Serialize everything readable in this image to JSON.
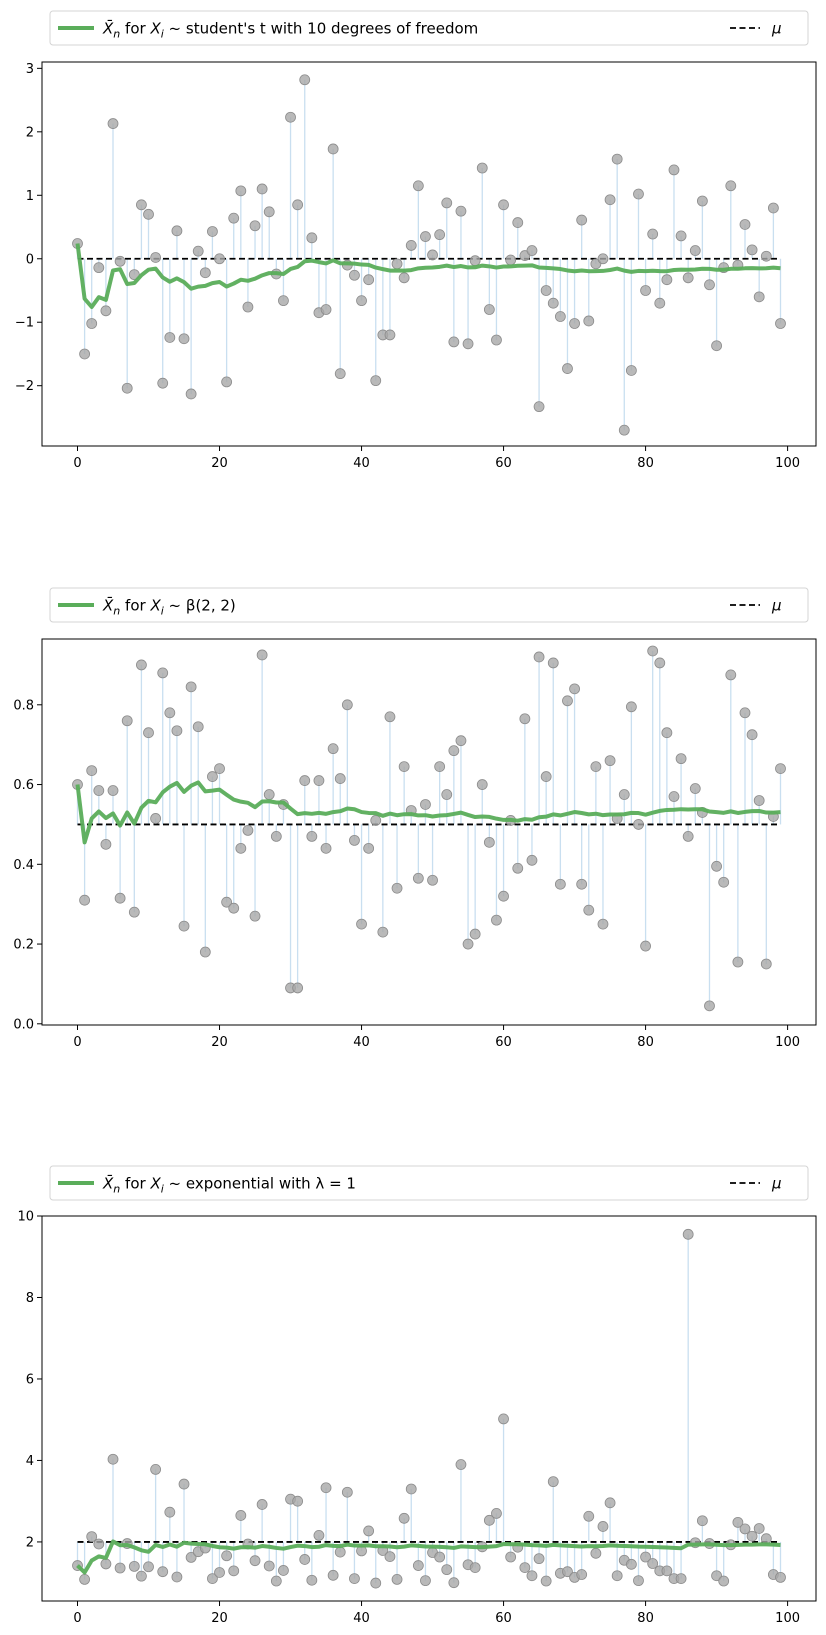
{
  "chart_data": [
    {
      "type": "line",
      "legend": {
        "sample_mean": {
          "prefix": "X̄",
          "sub": "n",
          "mid": " for ",
          "var": "X",
          "varsub": "i",
          "dist": " ~ student's t with 10 degrees of freedom"
        },
        "mu": "μ"
      },
      "mu": 0,
      "ylim": [
        -2.95,
        3.1
      ],
      "yticks": [
        -2,
        -1,
        0,
        1,
        2,
        3
      ],
      "ytick_labels": [
        "−2",
        "−1",
        "0",
        "1",
        "2",
        "3"
      ],
      "xlim": [
        -5,
        104
      ],
      "xticks": [
        0,
        20,
        40,
        60,
        80,
        100
      ],
      "xtick_labels": [
        "0",
        "20",
        "40",
        "60",
        "80",
        "100"
      ],
      "samples": [
        0.24,
        -1.5,
        -1.02,
        -0.14,
        -0.82,
        2.13,
        -0.04,
        -2.04,
        -0.25,
        0.85,
        0.7,
        0.02,
        -1.96,
        -1.24,
        0.44,
        -1.26,
        -2.13,
        0.12,
        -0.22,
        0.43,
        0.0,
        -1.94,
        0.64,
        1.07,
        -0.76,
        0.52,
        1.1,
        0.74,
        -0.24,
        -0.66,
        2.23,
        0.85,
        2.82,
        0.33,
        -0.85,
        -0.8,
        1.73,
        -1.81,
        -0.1,
        -0.26,
        -0.66,
        -0.33,
        -1.92,
        -1.2,
        -1.2,
        -0.08,
        -0.3,
        0.21,
        1.15,
        0.35,
        0.06,
        0.38,
        0.88,
        -1.31,
        0.75,
        -1.34,
        -0.03,
        1.43,
        -0.8,
        -1.28,
        0.85,
        -0.02,
        0.57,
        0.05,
        0.13,
        -2.33,
        -0.5,
        -0.7,
        -0.91,
        -1.73,
        -1.02,
        0.61,
        -0.98,
        -0.08,
        0.0,
        0.93,
        1.57,
        -2.7,
        -1.76,
        1.02,
        -0.5,
        0.39,
        -0.7,
        -0.33,
        1.4,
        0.36,
        -0.3,
        0.13,
        0.91,
        -0.41,
        -1.37,
        -0.14,
        1.15,
        -0.1,
        0.54,
        0.14,
        -0.6,
        0.04,
        0.8,
        -1.02
      ],
      "mean_curve": true
    },
    {
      "type": "line",
      "legend": {
        "sample_mean": {
          "prefix": "X̄",
          "sub": "n",
          "mid": " for ",
          "var": "X",
          "varsub": "i",
          "dist": " ~ β(2, 2)"
        },
        "mu": "μ"
      },
      "mu": 0.5,
      "ylim": [
        -0.003,
        0.965
      ],
      "yticks": [
        0.0,
        0.2,
        0.4,
        0.6,
        0.8
      ],
      "ytick_labels": [
        "0.0",
        "0.2",
        "0.4",
        "0.6",
        "0.8"
      ],
      "xlim": [
        -5,
        104
      ],
      "xticks": [
        0,
        20,
        40,
        60,
        80,
        100
      ],
      "xtick_labels": [
        "0",
        "20",
        "40",
        "60",
        "80",
        "100"
      ],
      "samples": [
        0.6,
        0.31,
        0.635,
        0.585,
        0.45,
        0.585,
        0.315,
        0.76,
        0.28,
        0.9,
        0.73,
        0.515,
        0.88,
        0.78,
        0.735,
        0.245,
        0.845,
        0.745,
        0.18,
        0.62,
        0.64,
        0.305,
        0.29,
        0.44,
        0.485,
        0.27,
        0.925,
        0.575,
        0.47,
        0.55,
        0.09,
        0.09,
        0.61,
        0.47,
        0.61,
        0.44,
        0.69,
        0.615,
        0.8,
        0.46,
        0.25,
        0.44,
        0.51,
        0.23,
        0.77,
        0.34,
        0.645,
        0.535,
        0.365,
        0.55,
        0.36,
        0.645,
        0.575,
        0.685,
        0.71,
        0.2,
        0.225,
        0.6,
        0.455,
        0.26,
        0.32,
        0.51,
        0.39,
        0.765,
        0.41,
        0.92,
        0.62,
        0.905,
        0.35,
        0.81,
        0.84,
        0.35,
        0.285,
        0.645,
        0.25,
        0.66,
        0.515,
        0.575,
        0.795,
        0.5,
        0.195,
        0.935,
        0.905,
        0.73,
        0.57,
        0.665,
        0.47,
        0.59,
        0.53,
        0.045,
        0.395,
        0.355,
        0.875,
        0.155,
        0.78,
        0.725,
        0.56,
        0.15,
        0.52,
        0.64
      ],
      "mean_curve": true
    },
    {
      "type": "line",
      "legend": {
        "sample_mean": {
          "prefix": "X̄",
          "sub": "n",
          "mid": " for ",
          "var": "X",
          "varsub": "i",
          "dist": " ~ exponential with λ = 1"
        },
        "mu": "μ"
      },
      "mu": 2,
      "ylim": [
        0.55,
        10.0
      ],
      "yticks": [
        2,
        4,
        6,
        8,
        10
      ],
      "ytick_labels": [
        "2",
        "4",
        "6",
        "8",
        "10"
      ],
      "xlim": [
        -5,
        104
      ],
      "xticks": [
        0,
        20,
        40,
        60,
        80,
        100
      ],
      "xtick_labels": [
        "0",
        "20",
        "40",
        "60",
        "80",
        "100"
      ],
      "samples": [
        1.42,
        1.08,
        2.13,
        1.95,
        1.46,
        4.03,
        1.36,
        1.96,
        1.4,
        1.16,
        1.39,
        3.78,
        1.27,
        2.73,
        1.14,
        3.42,
        1.62,
        1.76,
        1.85,
        1.1,
        1.25,
        1.66,
        1.29,
        2.65,
        1.95,
        1.54,
        2.92,
        1.41,
        1.04,
        1.3,
        3.05,
        3.0,
        1.57,
        1.06,
        2.16,
        3.33,
        1.18,
        1.75,
        3.22,
        1.1,
        1.78,
        2.27,
        0.99,
        1.79,
        1.64,
        1.08,
        2.58,
        3.3,
        1.42,
        1.05,
        1.74,
        1.63,
        1.32,
        1.0,
        3.9,
        1.44,
        1.37,
        1.88,
        2.53,
        2.7,
        5.02,
        1.63,
        1.87,
        1.37,
        1.17,
        1.59,
        1.04,
        3.48,
        1.23,
        1.27,
        1.13,
        1.2,
        2.63,
        1.72,
        2.38,
        2.96,
        1.17,
        1.55,
        1.45,
        1.05,
        1.63,
        1.47,
        1.29,
        1.29,
        1.1,
        1.1,
        9.55,
        1.98,
        2.52,
        1.96,
        1.17,
        1.04,
        1.93,
        2.48,
        2.32,
        2.14,
        2.33,
        2.08,
        1.2,
        1.13
      ],
      "mean_curve": true
    }
  ],
  "colors": {
    "mean_line": "#5aad5a",
    "mu_line": "#000000",
    "stem": "#c9dff0",
    "marker_fill": "#a8a8a8",
    "marker_stroke": "#8c8c8c"
  }
}
